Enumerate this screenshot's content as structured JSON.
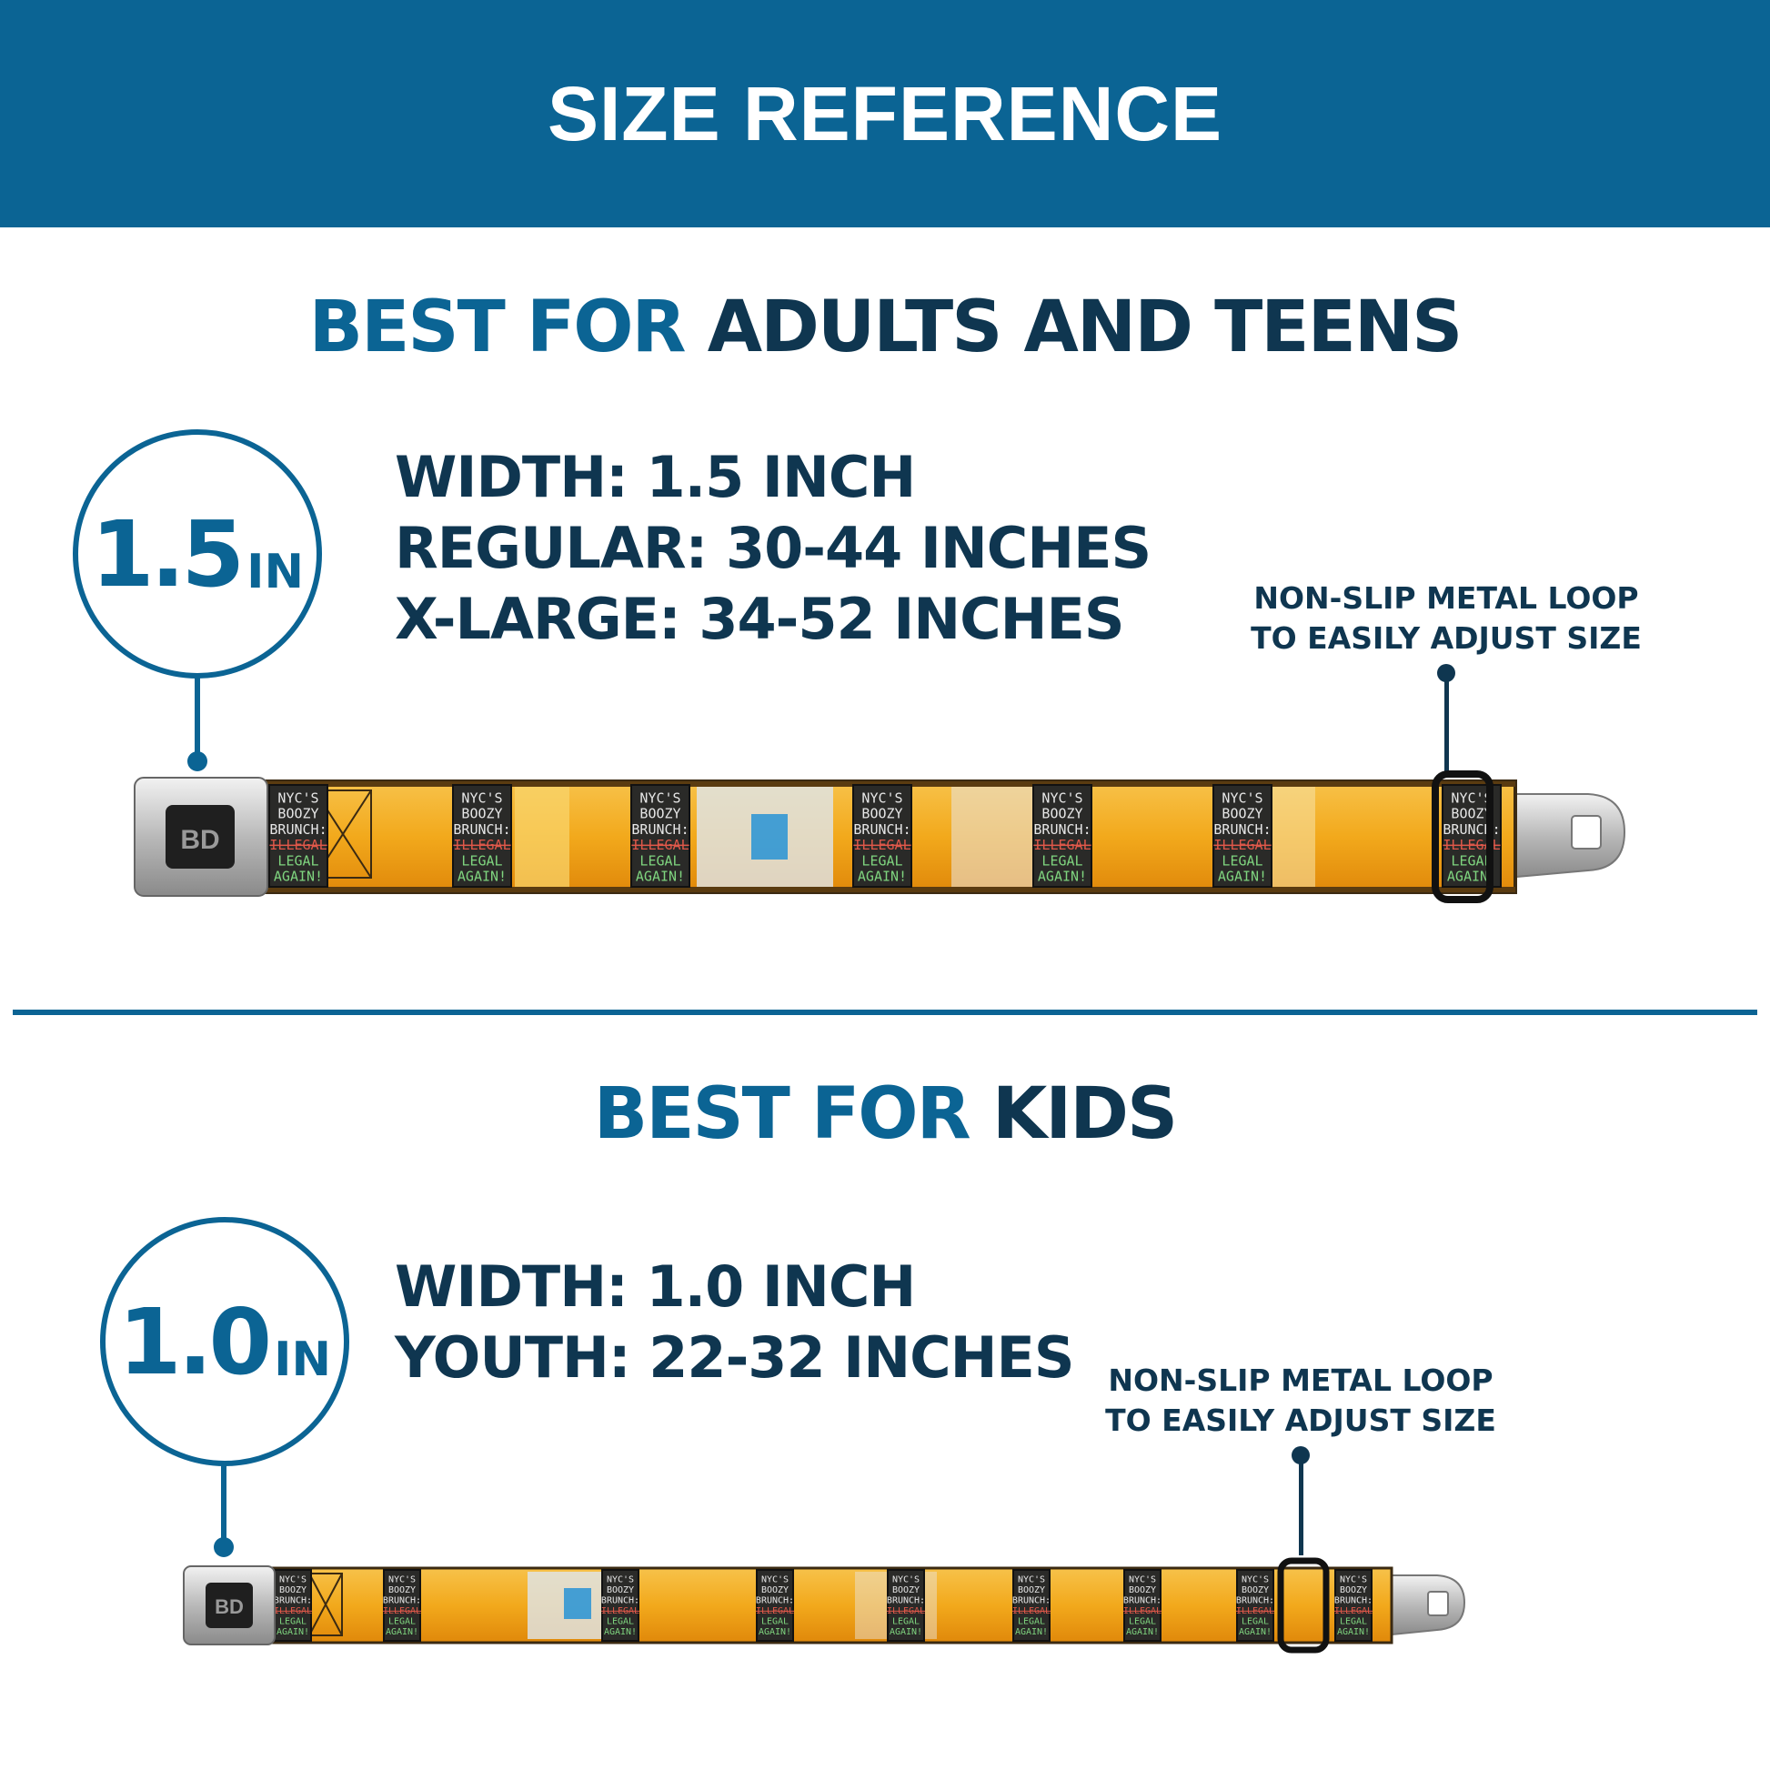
{
  "banner": {
    "title": "SIZE REFERENCE"
  },
  "adults": {
    "heading_highlight": "BEST FOR",
    "heading_rest": "ADULTS AND TEENS",
    "badge_value": "1.5",
    "badge_unit": "IN",
    "specs": [
      "WIDTH: 1.5 INCH",
      "REGULAR: 30-44 INCHES",
      "X-LARGE: 34-52 INCHES"
    ],
    "note_line1": "NON-SLIP METAL LOOP",
    "note_line2": "TO EASILY ADJUST SIZE"
  },
  "kids": {
    "heading_highlight": "BEST FOR",
    "heading_rest": "KIDS",
    "badge_value": "1.0",
    "badge_unit": "IN",
    "specs": [
      "WIDTH: 1.0 INCH",
      "YOUTH: 22-32 INCHES"
    ],
    "note_line1": "NON-SLIP METAL LOOP",
    "note_line2": "TO EASILY ADJUST SIZE"
  },
  "patch_text": [
    "NYC'S",
    "BOOZY",
    "BRUNCH:",
    "ILLEGAL",
    "LEGAL",
    "AGAIN!"
  ],
  "buckle_logo": "BD",
  "colors": {
    "brand_blue": "#0b6494",
    "navy_text": "#0f3650",
    "belt_orange": "#f2a91c",
    "patch_dark": "#2a2a28"
  }
}
